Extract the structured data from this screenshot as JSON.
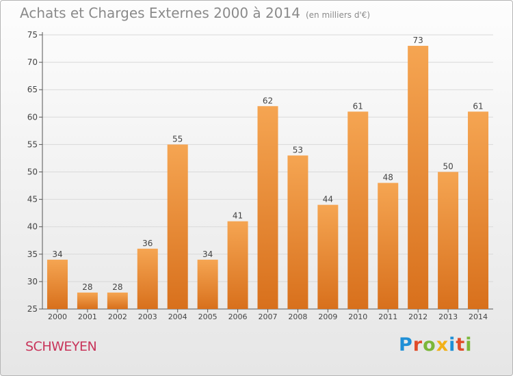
{
  "page": {
    "title": "Achats et Charges Externes 2000 à 2014",
    "unit": "(en milliers d'€)",
    "city": "SCHWEYEN",
    "logo": "Proxiti"
  },
  "colors": {
    "bar_top": "#f5a552",
    "bar_bottom": "#d8701c",
    "axis": "#555555",
    "grid": "#d9d9d9",
    "logo": [
      "#1f8fd6",
      "#e04c2a",
      "#7bb73a",
      "#f2b118",
      "#1f8fd6",
      "#e04c2a",
      "#7bb73a"
    ]
  },
  "chart_data": {
    "type": "bar",
    "categories": [
      "2000",
      "2001",
      "2002",
      "2003",
      "2004",
      "2005",
      "2006",
      "2007",
      "2008",
      "2009",
      "2010",
      "2011",
      "2012",
      "2013",
      "2014"
    ],
    "values": [
      34,
      28,
      28,
      36,
      55,
      34,
      41,
      62,
      53,
      44,
      61,
      48,
      73,
      50,
      61
    ],
    "ylim": [
      25,
      75
    ],
    "yticks": [
      25,
      30,
      35,
      40,
      45,
      50,
      55,
      60,
      65,
      70,
      75
    ],
    "title": "Achats et Charges Externes 2000 à 2014",
    "unit": "(en milliers d'€)",
    "grid": true
  }
}
